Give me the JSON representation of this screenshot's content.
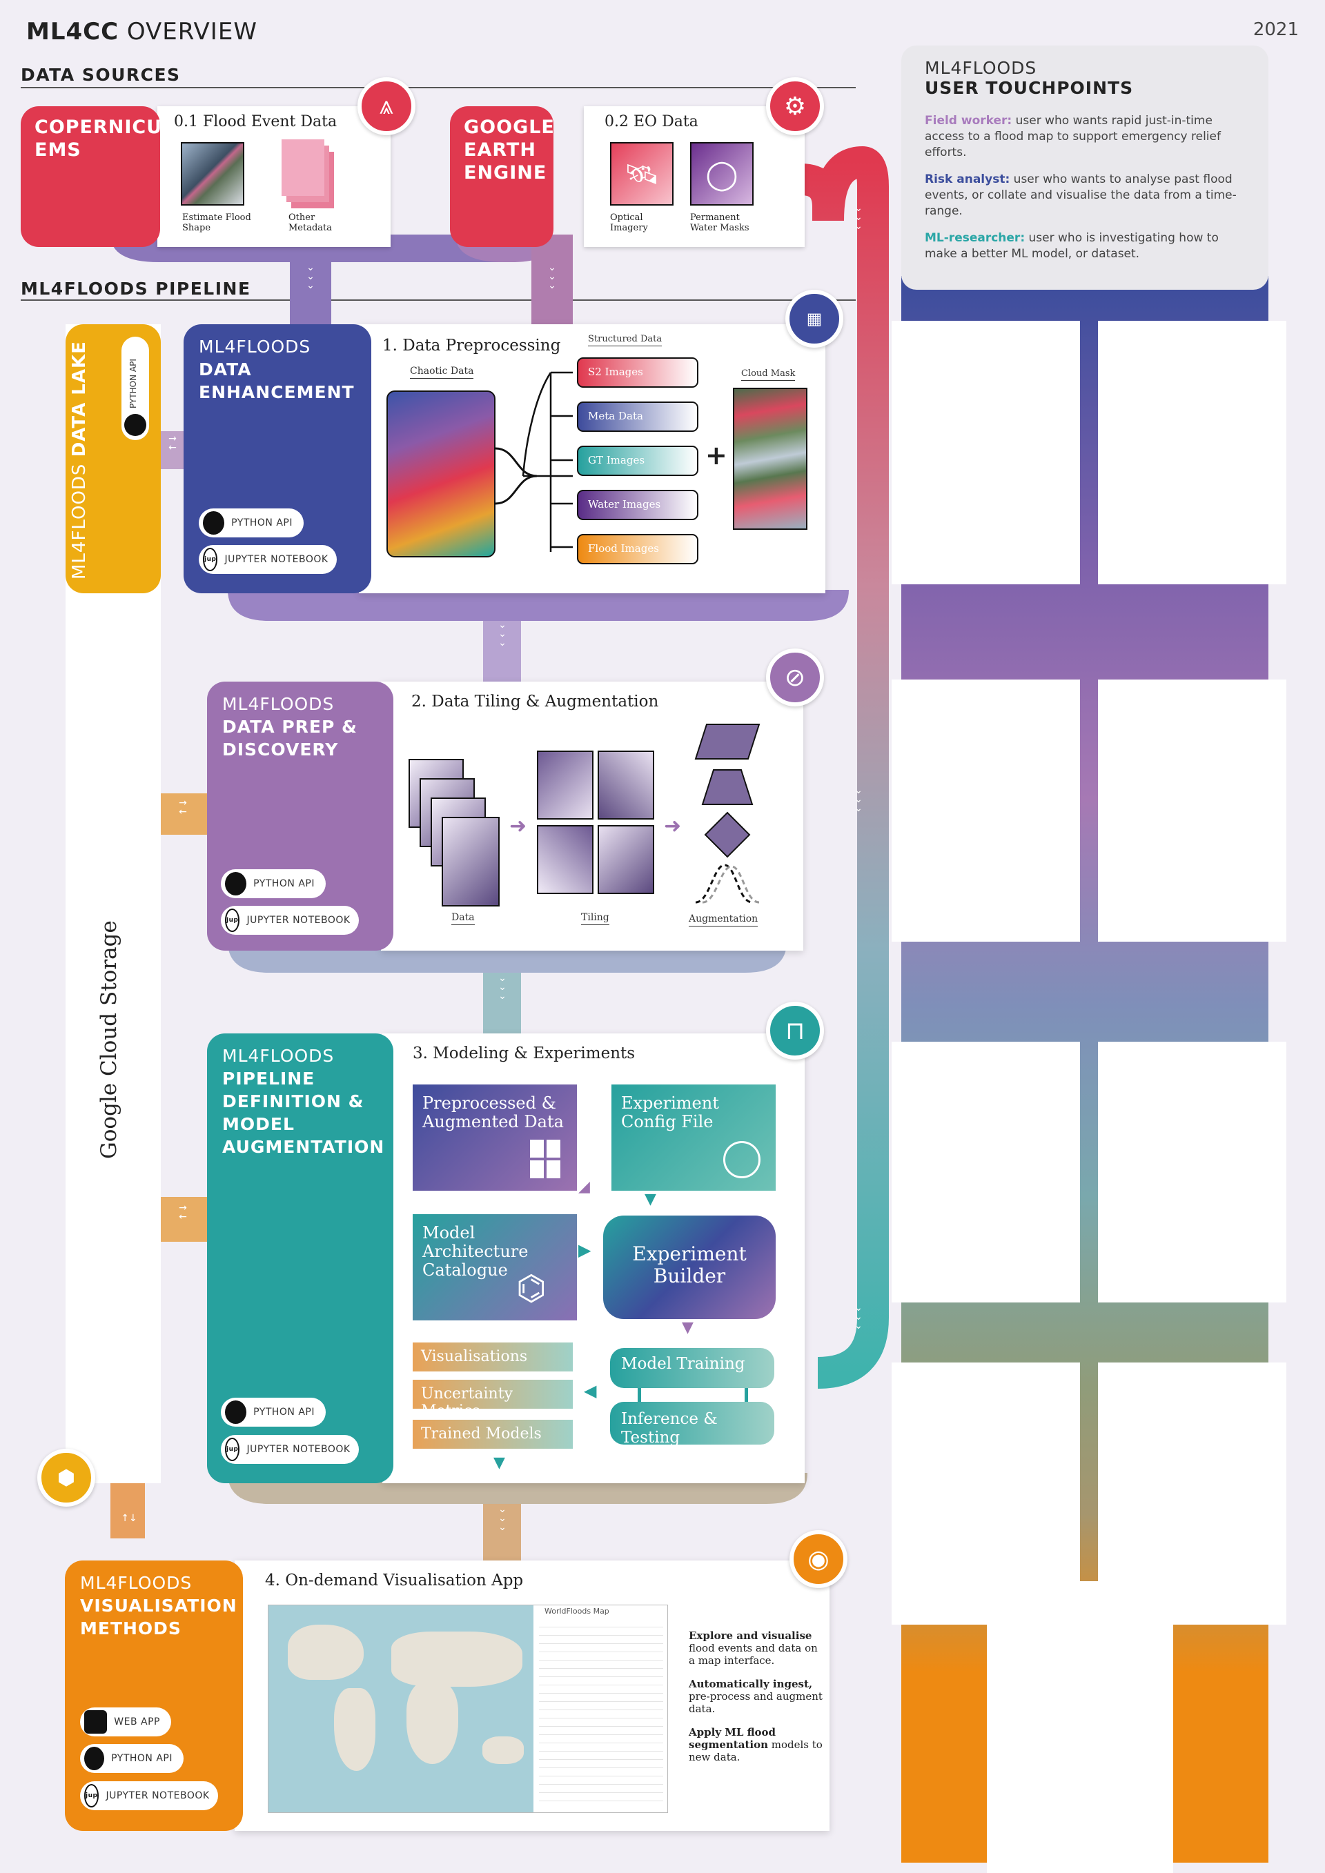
{
  "page": {
    "title_bold": "ML4CC",
    "title_light": "OVERVIEW",
    "year": "2021"
  },
  "sections": {
    "data_sources": "DATA SOURCES",
    "pipeline": "ML4FLOODS PIPELINE"
  },
  "sources": {
    "copernicus": {
      "tile": "COPERNICUS EMS",
      "title": "0.1 Flood Event Data",
      "items": [
        "Estimate Flood Shape",
        "Other Metadata"
      ]
    },
    "gee": {
      "tile": "GOOGLE EARTH ENGINE",
      "title": "0.2 EO Data",
      "items": [
        "Optical Imagery",
        "Permanent Water Masks"
      ]
    }
  },
  "data_lake": {
    "kicker": "ML4FLOODS",
    "title": "DATA LAKE",
    "api": "PYTHON API",
    "storage": "Google Cloud Storage"
  },
  "stage1": {
    "kicker": "ML4FLOODS",
    "title": "DATA ENHANCEMENT",
    "heading": "1. Data Preprocessing",
    "chaotic": "Chaotic Data",
    "structured": "Structured Data",
    "cloud": "Cloud Mask",
    "items": [
      "S2 Images",
      "Meta Data",
      "GT Images",
      "Water Images",
      "Flood Images"
    ],
    "plus": "+",
    "pills": [
      "PYTHON API",
      "JUPYTER NOTEBOOK"
    ]
  },
  "stage2": {
    "kicker": "ML4FLOODS",
    "title": "DATA PREP & DISCOVERY",
    "heading": "2. Data Tiling & Augmentation",
    "labels": [
      "Data",
      "Tiling",
      "Augmentation"
    ],
    "pills": [
      "PYTHON API",
      "JUPYTER NOTEBOOK"
    ]
  },
  "stage3": {
    "kicker": "ML4FLOODS",
    "title": "PIPELINE DEFINITION & MODEL AUGMENTATION",
    "heading": "3. Modeling & Experiments",
    "blocks": {
      "preprocessed": "Preprocessed & Augmented Data",
      "config": "Experiment Config File",
      "catalogue": "Model Architecture Catalogue",
      "builder": "Experiment Builder",
      "training": "Model Training",
      "inference": "Inference & Testing"
    },
    "outputs": [
      "Visualisations",
      "Uncertainty Metrics",
      "Trained Models"
    ],
    "pills": [
      "PYTHON API",
      "JUPYTER NOTEBOOK"
    ]
  },
  "stage4": {
    "kicker": "ML4FLOODS",
    "title": "VISUALISATION METHODS",
    "heading": "4. On-demand Visualisation App",
    "app_title": "WorldFloods Map",
    "notes": [
      {
        "bold": "Explore and visualise",
        "rest": "flood events and data on a map interface."
      },
      {
        "bold": "Automatically ingest,",
        "rest": "pre-process and augment data."
      },
      {
        "bold": "Apply ML flood segmentation",
        "rest": "models to new data."
      }
    ],
    "pills": [
      "WEB APP",
      "PYTHON API",
      "JUPYTER NOTEBOOK"
    ]
  },
  "touchpoints": {
    "kicker": "ML4FLOODS",
    "title": "USER TOUCHPOINTS",
    "roles": [
      {
        "name": "Field worker:",
        "text": "user who wants rapid just-in-time access to a flood map to support emergency relief efforts.",
        "color": "#a87bbd"
      },
      {
        "name": "Risk analyst:",
        "text": "user who wants to analyse past flood events, or collate and visualise the data from a time-range.",
        "color": "#3b4d9c"
      },
      {
        "name": "ML-researcher:",
        "text": "user who is investigating how to make a better ML model, or dataset.",
        "color": "#2aa6a6"
      }
    ]
  },
  "colors": {
    "red": "#e0394f",
    "indigo": "#3e4c9c",
    "purple": "#9c72b0",
    "teal": "#27a19e",
    "orange": "#ee8a12",
    "yellow": "#eeac12"
  }
}
